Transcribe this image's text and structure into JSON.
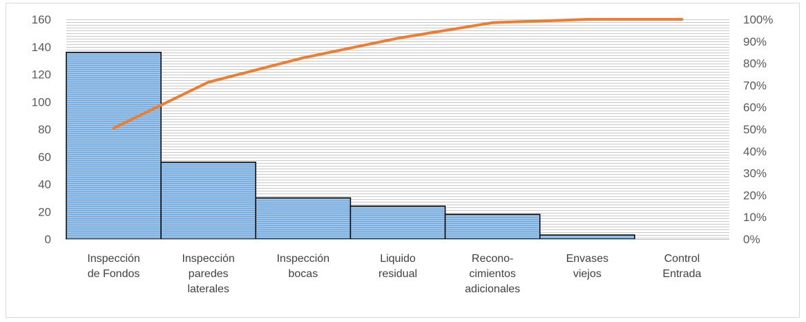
{
  "chart_data": {
    "type": "pareto",
    "categories": [
      [
        "Inspección",
        "de Fondos"
      ],
      [
        "Inspección",
        "paredes",
        "laterales"
      ],
      [
        "Inspección",
        "bocas"
      ],
      [
        "Liquido",
        "residual"
      ],
      [
        "Recono-",
        "cimientos",
        "adicionales"
      ],
      [
        "Envases",
        "viejos"
      ],
      [
        "Control",
        "Entrada"
      ]
    ],
    "series": [
      {
        "kind": "bar",
        "axis": "left",
        "color": "#9dc3e6",
        "values": [
          136,
          56,
          30,
          24,
          18,
          3,
          0
        ]
      },
      {
        "kind": "line",
        "axis": "right",
        "color": "#ed7d31",
        "values": [
          50.5,
          71.4,
          82.5,
          91.4,
          98.5,
          100,
          100
        ]
      }
    ],
    "y_left": {
      "min": 0,
      "max": 160,
      "ticks": [
        "0",
        "20",
        "40",
        "60",
        "80",
        "100",
        "120",
        "140",
        "160"
      ]
    },
    "y_right": {
      "min": 0,
      "max": 100,
      "ticks": [
        "0%",
        "10%",
        "20%",
        "30%",
        "40%",
        "50%",
        "60%",
        "70%",
        "80%",
        "90%",
        "100%"
      ]
    },
    "grid": "horizontal dense lines",
    "legend": "none"
  }
}
